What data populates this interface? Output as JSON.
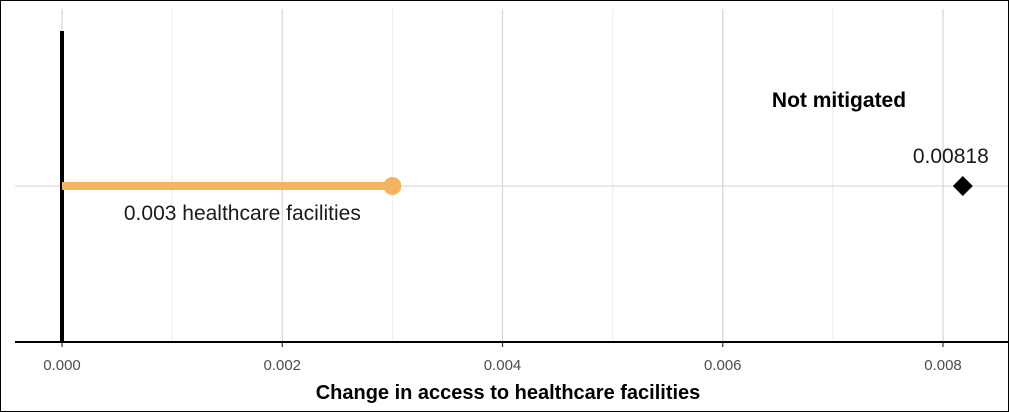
{
  "chart_data": {
    "type": "dot-range",
    "xlabel": "Change in access to healthcare facilities",
    "xlim": [
      0,
      0.0084
    ],
    "x_ticks": [
      0.0,
      0.002,
      0.004,
      0.006,
      0.008
    ],
    "x_tick_labels": [
      "0.000",
      "0.002",
      "0.004",
      "0.006",
      "0.008"
    ],
    "x_minor_ticks": [
      0.001,
      0.003,
      0.005,
      0.007
    ],
    "grid": true,
    "reference_line_x": 0,
    "segment": {
      "from": 0,
      "to": 0.003,
      "label": "0.003 healthcare facilities",
      "color": "#F5B461"
    },
    "marker": {
      "x": 0.00818,
      "label": "0.00818",
      "shape": "diamond",
      "color": "#000000",
      "annotation": "Not mitigated"
    }
  }
}
